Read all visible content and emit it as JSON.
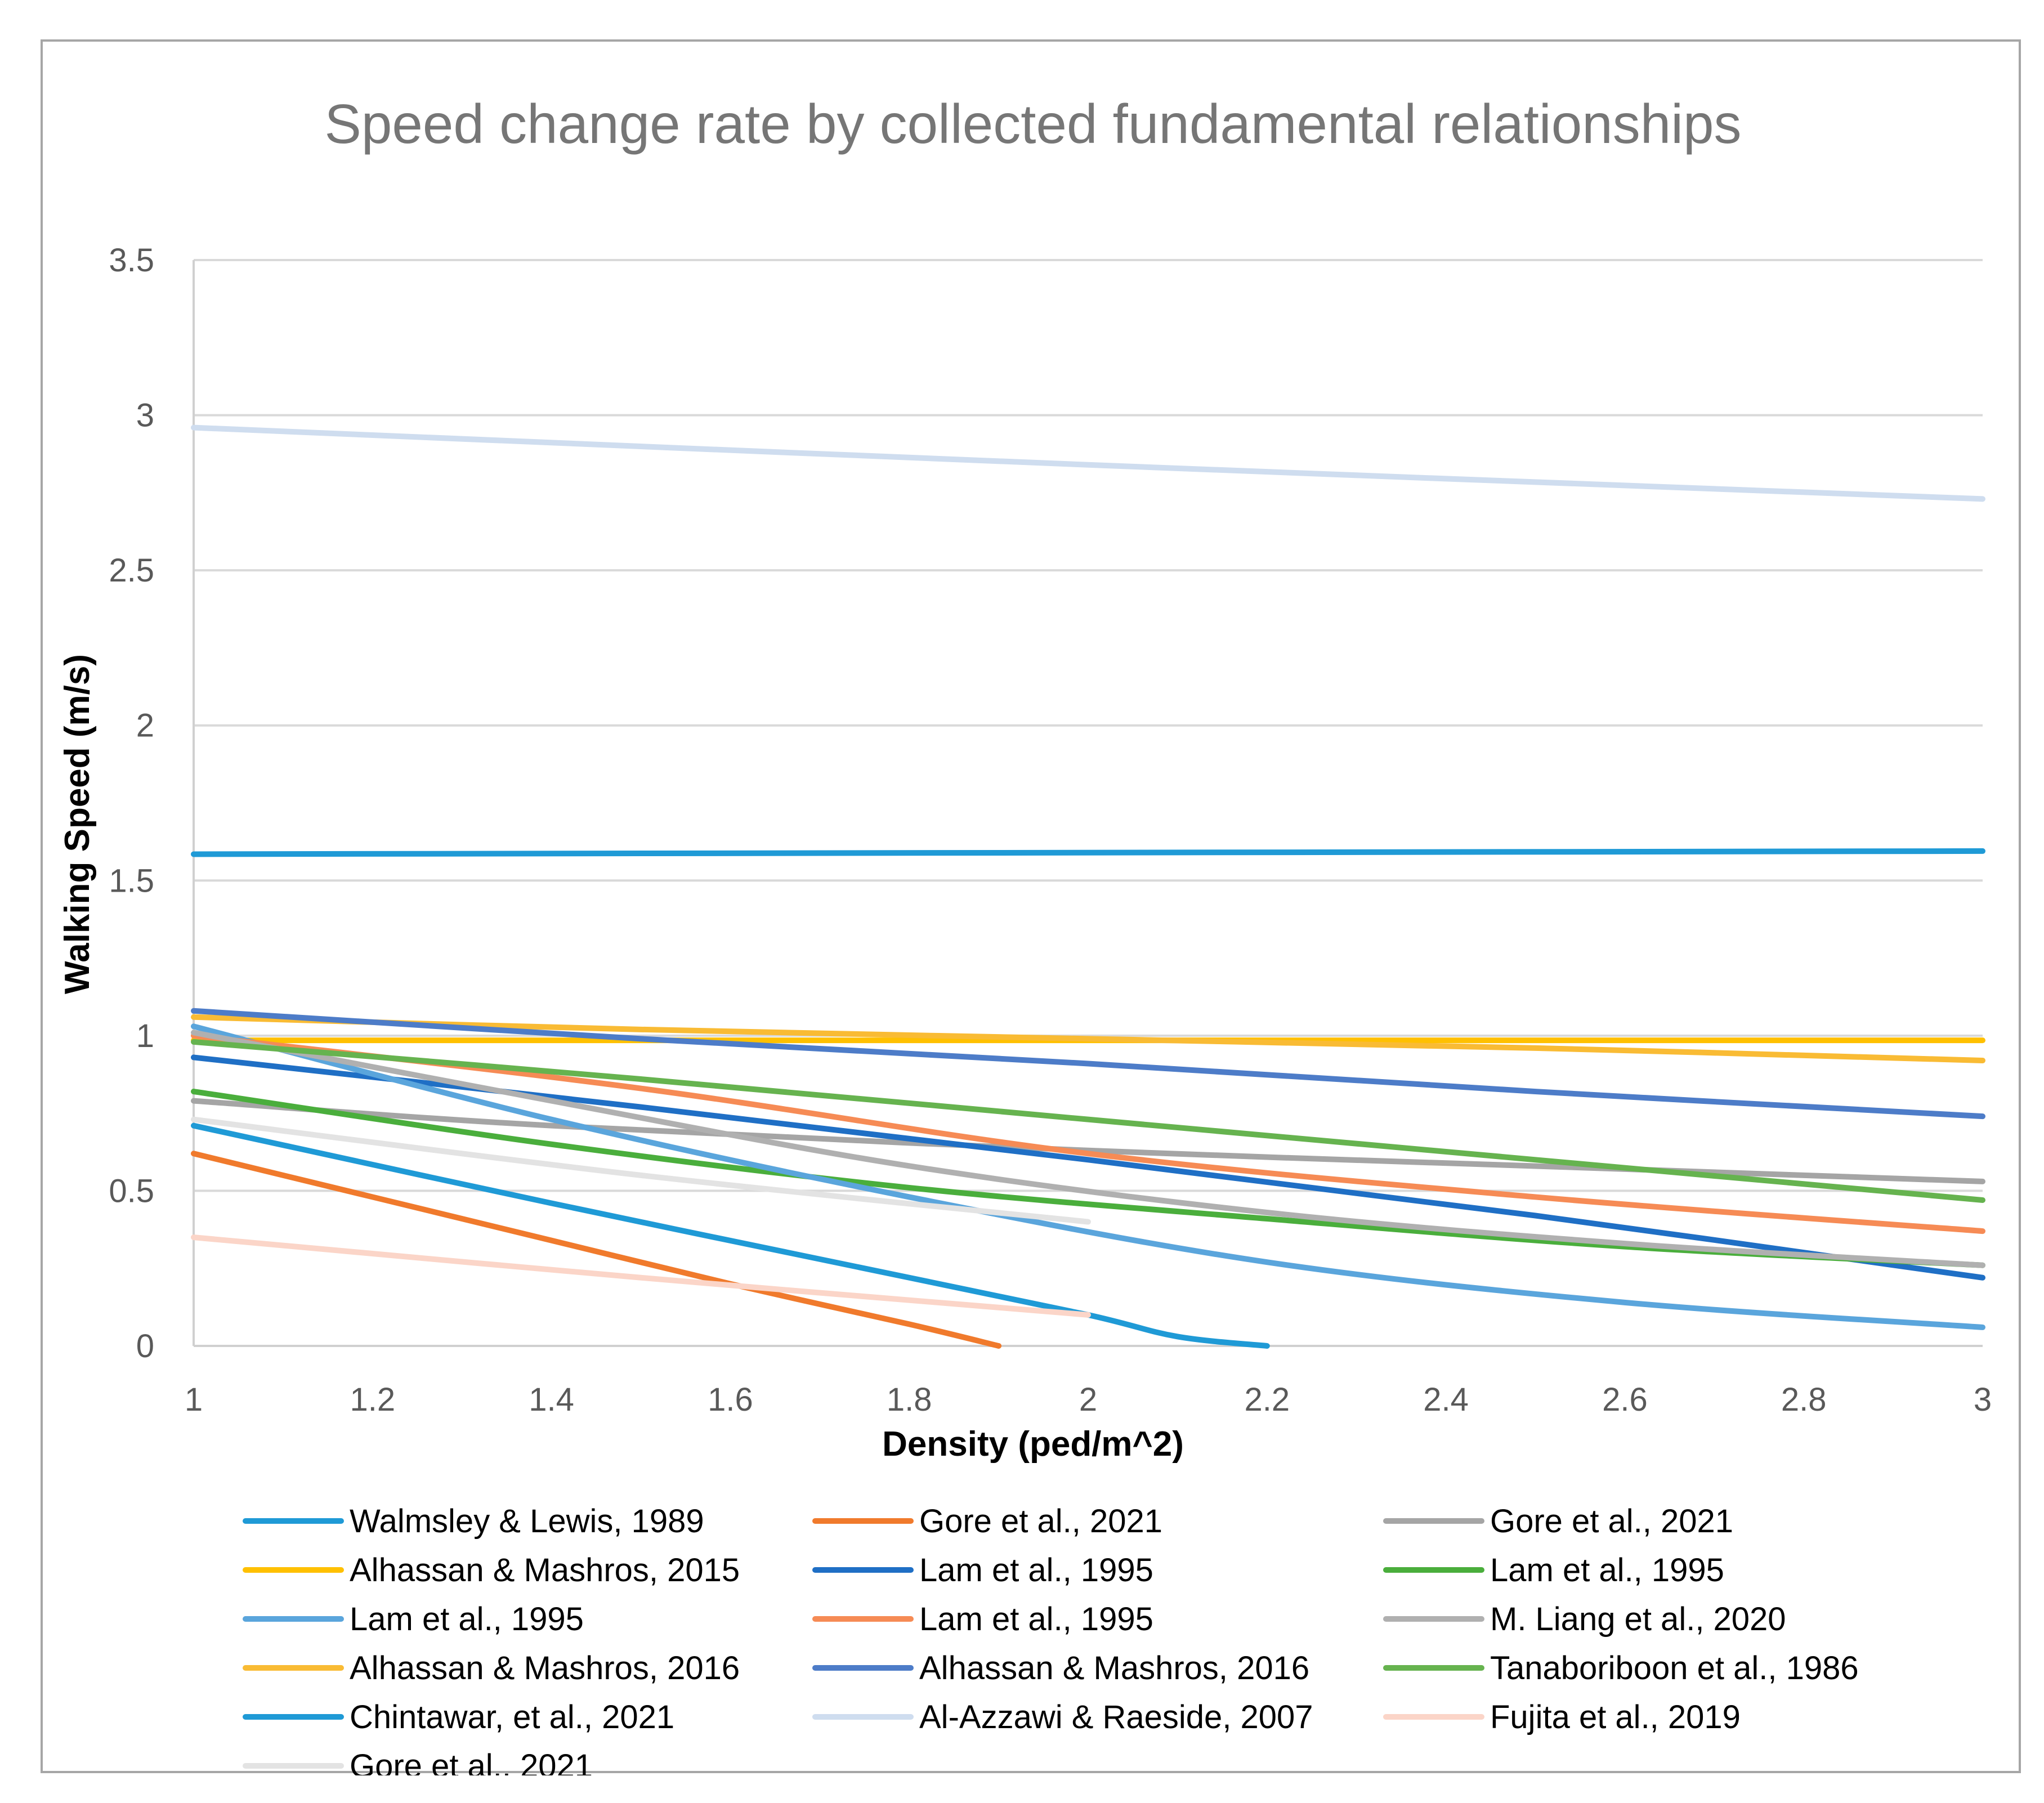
{
  "chart_data": {
    "type": "line",
    "title": "Speed change rate by collected fundamental relationships",
    "xlabel": "Density (ped/m^2)",
    "ylabel": "Walking Speed (m/s)",
    "xlim": [
      1,
      3
    ],
    "ylim": [
      0,
      3.5
    ],
    "x_ticks": [
      "1",
      "1.2",
      "1.4",
      "1.6",
      "1.8",
      "2",
      "2.2",
      "2.4",
      "2.6",
      "2.8",
      "3"
    ],
    "y_ticks": [
      "0",
      "0.5",
      "1",
      "1.5",
      "2",
      "2.5",
      "3",
      "3.5"
    ],
    "grid": "horizontal",
    "legend_position": "bottom",
    "series": [
      {
        "name": "Walmsley & Lewis, 1989",
        "color": "#1f9ad6",
        "x": [
          1,
          3
        ],
        "y": [
          1.585,
          1.595
        ]
      },
      {
        "name": "Gore et al., 2021",
        "color": "#f07a2c",
        "x": [
          1,
          1.2,
          1.4,
          1.6,
          1.8,
          1.9
        ],
        "y": [
          0.62,
          0.48,
          0.34,
          0.2,
          0.07,
          0.0
        ]
      },
      {
        "name": "Gore et al., 2021",
        "color": "#a5a5a5",
        "x": [
          1,
          1.4,
          2,
          2.6,
          3
        ],
        "y": [
          0.79,
          0.71,
          0.63,
          0.57,
          0.53
        ]
      },
      {
        "name": "Alhassan & Mashros, 2015",
        "color": "#ffc000",
        "x": [
          1,
          3
        ],
        "y": [
          0.985,
          0.985
        ]
      },
      {
        "name": "Lam et al., 1995",
        "color": "#1f6fc5",
        "x": [
          1,
          1.5,
          2,
          2.5,
          3
        ],
        "y": [
          0.93,
          0.77,
          0.6,
          0.42,
          0.22
        ]
      },
      {
        "name": "Lam et al., 1995",
        "color": "#4aae3c",
        "x": [
          1,
          1.4,
          1.8,
          2.2,
          2.6,
          3
        ],
        "y": [
          0.82,
          0.65,
          0.51,
          0.41,
          0.32,
          0.26
        ]
      },
      {
        "name": "Lam et al., 1995",
        "color": "#5aa5dc",
        "x": [
          1,
          1.4,
          1.8,
          2.2,
          2.6,
          3
        ],
        "y": [
          1.03,
          0.73,
          0.48,
          0.27,
          0.14,
          0.06
        ]
      },
      {
        "name": "Lam et al., 1995",
        "color": "#f68b55",
        "x": [
          1,
          1.5,
          2,
          2.5,
          3
        ],
        "y": [
          1.0,
          0.83,
          0.62,
          0.48,
          0.37
        ]
      },
      {
        "name": "M. Liang et al., 2020",
        "color": "#b0b0b0",
        "x": [
          1,
          1.4,
          1.8,
          2.2,
          2.6,
          3
        ],
        "y": [
          1.01,
          0.79,
          0.58,
          0.43,
          0.33,
          0.26
        ]
      },
      {
        "name": "Alhassan & Mashros, 2016",
        "color": "#f9bb34",
        "x": [
          1,
          1.5,
          2,
          2.5,
          3
        ],
        "y": [
          1.06,
          1.02,
          0.99,
          0.96,
          0.92
        ]
      },
      {
        "name": "Alhassan & Mashros, 2016",
        "color": "#4d7cc8",
        "x": [
          1,
          1.5,
          2,
          2.5,
          3
        ],
        "y": [
          1.08,
          0.99,
          0.91,
          0.82,
          0.74
        ]
      },
      {
        "name": "Tanaboriboon et al., 1986",
        "color": "#66b34f",
        "x": [
          1,
          1.5,
          2,
          2.5,
          3
        ],
        "y": [
          0.98,
          0.86,
          0.73,
          0.6,
          0.47
        ]
      },
      {
        "name": "Chintawar, et al., 2021",
        "color": "#1f9ad6",
        "x": [
          1,
          1.4,
          1.8,
          2.0,
          2.1,
          2.2
        ],
        "y": [
          0.71,
          0.46,
          0.22,
          0.1,
          0.03,
          0.0
        ]
      },
      {
        "name": "Al-Azzawi & Raeside, 2007",
        "color": "#cfddef",
        "x": [
          1,
          2,
          3
        ],
        "y": [
          2.96,
          2.84,
          2.73
        ]
      },
      {
        "name": "Fujita et al., 2019",
        "color": "#fbd5c8",
        "x": [
          1,
          1.5,
          2
        ],
        "y": [
          0.35,
          0.22,
          0.1
        ]
      },
      {
        "name": "Gore et al., 2021",
        "color": "#e3e3e3",
        "x": [
          1,
          1.5,
          2
        ],
        "y": [
          0.73,
          0.55,
          0.4
        ]
      }
    ]
  }
}
